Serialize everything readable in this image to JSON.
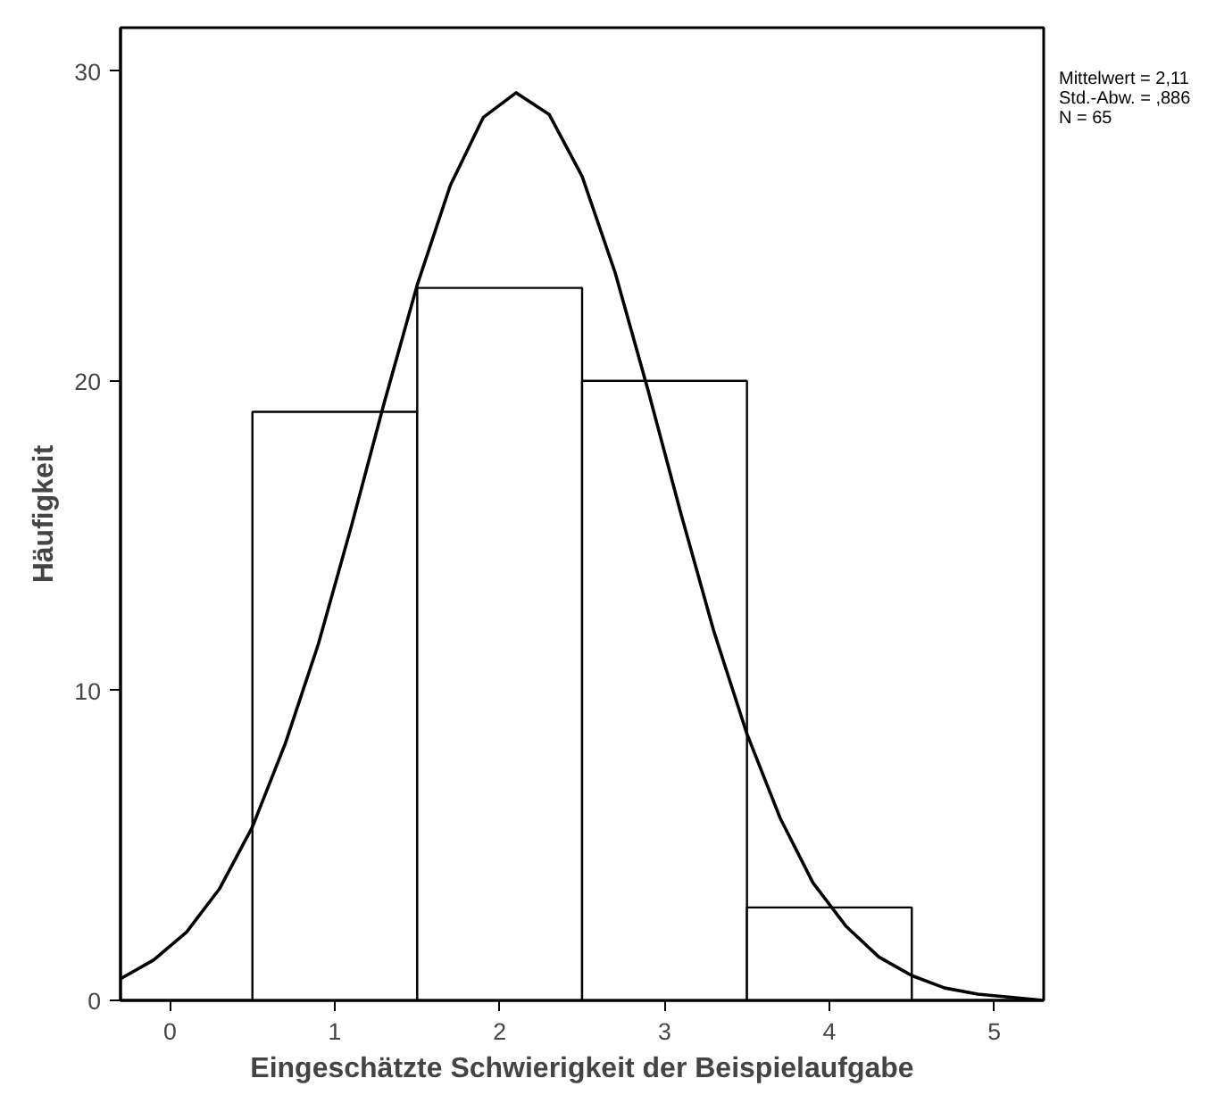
{
  "chart_data": {
    "type": "histogram",
    "xlabel": "Eingeschätzte Schwierigkeit der Beispielaufgabe",
    "ylabel": "Häufigkeit",
    "bins": [
      0.5,
      1.5,
      2.5,
      3.5,
      4.5
    ],
    "values": [
      19,
      23,
      20,
      3
    ],
    "color": "#ffffff",
    "series": [
      {
        "type": "line",
        "color": "#000000",
        "x": [
          -0.3,
          -0.1,
          0.1,
          0.3,
          0.5,
          0.7,
          0.9,
          1.1,
          1.3,
          1.5,
          1.7,
          1.9,
          2.1,
          2.3,
          2.5,
          2.7,
          2.9,
          3.1,
          3.3,
          3.5,
          3.7,
          3.9,
          4.1,
          4.3,
          4.5,
          4.7,
          4.9,
          5.1,
          5.3
        ],
        "values": [
          0.7,
          1.3,
          2.2,
          3.6,
          5.6,
          8.3,
          11.5,
          15.3,
          19.3,
          23.1,
          26.3,
          28.5,
          29.3,
          28.6,
          26.6,
          23.5,
          19.7,
          15.7,
          11.9,
          8.6,
          5.9,
          3.8,
          2.4,
          1.4,
          0.8,
          0.4,
          0.2,
          0.1,
          0.0
        ]
      }
    ],
    "xlim": [
      -0.3,
      5.3
    ],
    "ylim": [
      0,
      31.4
    ],
    "xticks": [
      0,
      1,
      2,
      3,
      4,
      5
    ],
    "yticks": [
      0,
      10,
      20,
      30
    ],
    "annotations": [
      "Mittelwert = 2,11",
      "Std.-Abw. = ,886",
      "N = 65"
    ],
    "grid": false
  }
}
